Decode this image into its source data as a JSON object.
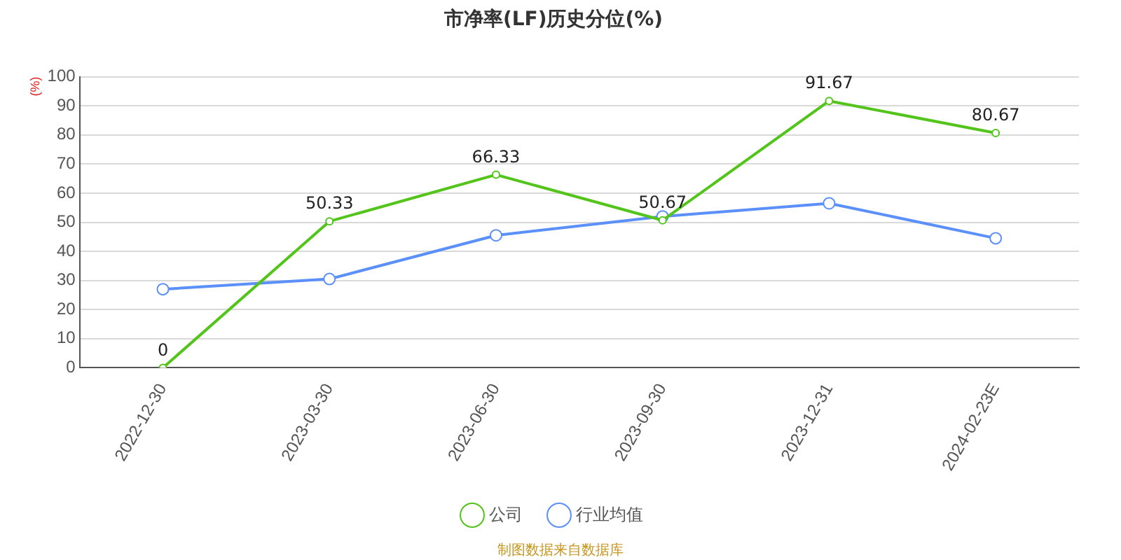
{
  "chart_data": {
    "type": "line",
    "title": "市净率(LF)历史分位(%)",
    "ylabel": "(%)",
    "categories": [
      "2022-12-30",
      "2023-03-30",
      "2023-06-30",
      "2023-09-30",
      "2023-12-31",
      "2024-02-23E"
    ],
    "series": [
      {
        "name": "公司",
        "color": "#52c41a",
        "values": [
          0,
          50.33,
          66.33,
          50.67,
          91.67,
          80.67
        ],
        "value_labels": [
          "0",
          "50.33",
          "66.33",
          "50.67",
          "91.67",
          "80.67"
        ]
      },
      {
        "name": "行业均值",
        "color": "#5b8ff9",
        "values": [
          27,
          30.5,
          45.5,
          52,
          56.5,
          44.5
        ]
      }
    ],
    "ylim": [
      0,
      100
    ],
    "yticks": [
      0,
      10,
      20,
      30,
      40,
      50,
      60,
      70,
      80,
      90,
      100
    ],
    "grid": "y",
    "legend": "bottom",
    "marker": "circle",
    "line_style": "solid",
    "annotations": [
      "制图数据来自数据库"
    ]
  }
}
